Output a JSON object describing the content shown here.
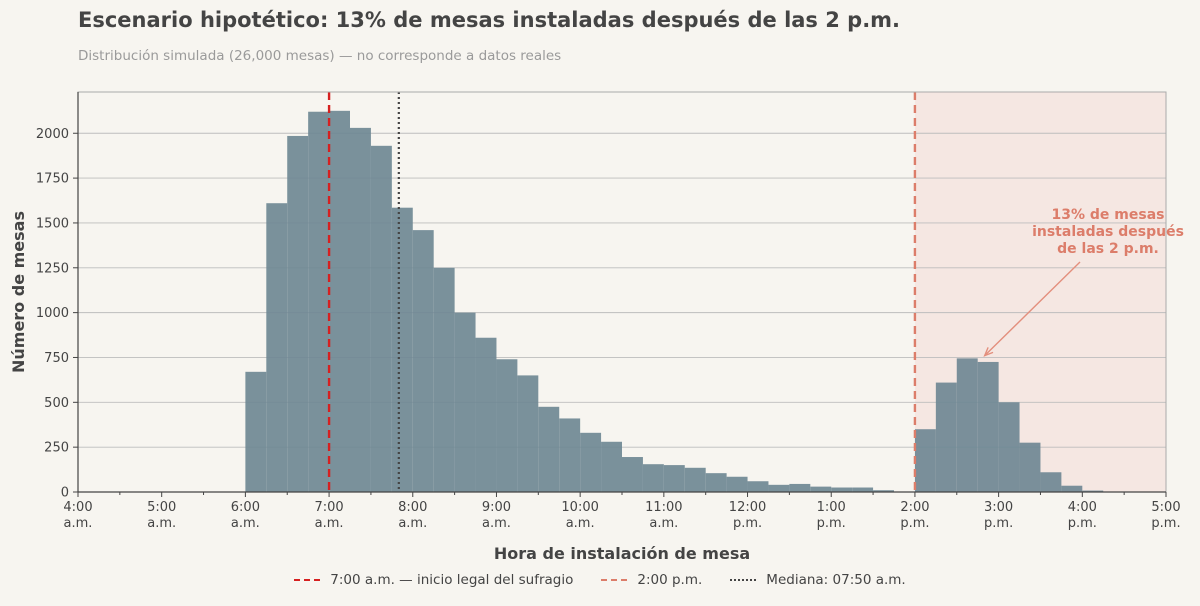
{
  "header": {
    "title": "Escenario hipotético: 13% de mesas instaladas después de las 2 p.m.",
    "subtitle": "Distribución simulada (26,000 mesas) — no corresponde a datos reales"
  },
  "legend": {
    "items": [
      {
        "label": "7:00 a.m. — inicio legal del sufragio",
        "color": "#d62020",
        "style": "dashed"
      },
      {
        "label": "2:00 p.m.",
        "color": "#dc7d6a",
        "style": "dashed"
      },
      {
        "label": "Mediana: 07:50 a.m.",
        "color": "#444444",
        "style": "dotted"
      }
    ]
  },
  "colors": {
    "background": "#f7f5f0",
    "bars": "#6f8894",
    "highlight_region": "#f5e7e2",
    "annotation": "#dc7d6a",
    "line_7am": "#d62020",
    "line_2pm": "#dc7d6a",
    "median": "#444444"
  },
  "chart_data": {
    "type": "bar",
    "title": "Escenario hipotético: 13% de mesas instaladas después de las 2 p.m.",
    "subtitle": "Distribución simulada (26,000 mesas) — no corresponde a datos reales",
    "xlabel": "Hora de instalación de mesa",
    "ylabel": "Número de mesas",
    "xlim": [
      "04:00",
      "17:00"
    ],
    "ylim": [
      0,
      2230
    ],
    "bin_width_minutes": 15,
    "bins": [
      {
        "start": "06:00",
        "value": 670
      },
      {
        "start": "06:15",
        "value": 1610
      },
      {
        "start": "06:30",
        "value": 1985
      },
      {
        "start": "06:45",
        "value": 2120
      },
      {
        "start": "07:00",
        "value": 2125
      },
      {
        "start": "07:15",
        "value": 2030
      },
      {
        "start": "07:30",
        "value": 1930
      },
      {
        "start": "07:45",
        "value": 1585
      },
      {
        "start": "08:00",
        "value": 1460
      },
      {
        "start": "08:15",
        "value": 1250
      },
      {
        "start": "08:30",
        "value": 1000
      },
      {
        "start": "08:45",
        "value": 860
      },
      {
        "start": "09:00",
        "value": 740
      },
      {
        "start": "09:15",
        "value": 650
      },
      {
        "start": "09:30",
        "value": 475
      },
      {
        "start": "09:45",
        "value": 410
      },
      {
        "start": "10:00",
        "value": 330
      },
      {
        "start": "10:15",
        "value": 280
      },
      {
        "start": "10:30",
        "value": 195
      },
      {
        "start": "10:45",
        "value": 155
      },
      {
        "start": "11:00",
        "value": 150
      },
      {
        "start": "11:15",
        "value": 135
      },
      {
        "start": "11:30",
        "value": 105
      },
      {
        "start": "11:45",
        "value": 85
      },
      {
        "start": "12:00",
        "value": 60
      },
      {
        "start": "12:15",
        "value": 40
      },
      {
        "start": "12:30",
        "value": 45
      },
      {
        "start": "12:45",
        "value": 30
      },
      {
        "start": "13:00",
        "value": 25
      },
      {
        "start": "13:15",
        "value": 25
      },
      {
        "start": "13:30",
        "value": 10
      },
      {
        "start": "14:00",
        "value": 350
      },
      {
        "start": "14:15",
        "value": 610
      },
      {
        "start": "14:30",
        "value": 745
      },
      {
        "start": "14:45",
        "value": 725
      },
      {
        "start": "15:00",
        "value": 500
      },
      {
        "start": "15:15",
        "value": 275
      },
      {
        "start": "15:30",
        "value": 110
      },
      {
        "start": "15:45",
        "value": 35
      },
      {
        "start": "16:00",
        "value": 8
      }
    ],
    "y_ticks": [
      0,
      250,
      500,
      750,
      1000,
      1250,
      1500,
      1750,
      2000
    ],
    "x_ticks": [
      {
        "time": "04:00",
        "line1": "4:00",
        "line2": "a.m."
      },
      {
        "time": "05:00",
        "line1": "5:00",
        "line2": "a.m."
      },
      {
        "time": "06:00",
        "line1": "6:00",
        "line2": "a.m."
      },
      {
        "time": "07:00",
        "line1": "7:00",
        "line2": "a.m."
      },
      {
        "time": "08:00",
        "line1": "8:00",
        "line2": "a.m."
      },
      {
        "time": "09:00",
        "line1": "9:00",
        "line2": "a.m."
      },
      {
        "time": "10:00",
        "line1": "10:00",
        "line2": "a.m."
      },
      {
        "time": "11:00",
        "line1": "11:00",
        "line2": "a.m."
      },
      {
        "time": "12:00",
        "line1": "12:00",
        "line2": "p.m."
      },
      {
        "time": "13:00",
        "line1": "1:00",
        "line2": "p.m."
      },
      {
        "time": "14:00",
        "line1": "2:00",
        "line2": "p.m."
      },
      {
        "time": "15:00",
        "line1": "3:00",
        "line2": "p.m."
      },
      {
        "time": "16:00",
        "line1": "4:00",
        "line2": "p.m."
      },
      {
        "time": "17:00",
        "line1": "5:00",
        "line2": "p.m."
      }
    ],
    "reference_lines": [
      {
        "time": "07:00",
        "label": "7:00 a.m. — inicio legal del sufragio",
        "style": "dashed",
        "color": "#d62020"
      },
      {
        "time": "14:00",
        "label": "2:00 p.m.",
        "style": "dashed",
        "color": "#dc7d6a"
      },
      {
        "time": "07:50",
        "label": "Mediana: 07:50 a.m.",
        "style": "dotted",
        "color": "#444444"
      }
    ],
    "highlight_region": {
      "from": "14:00",
      "to": "17:00"
    },
    "annotation": {
      "lines": [
        "13% de mesas",
        "instaladas después",
        "de las 2 p.m."
      ],
      "arrow_to": {
        "time": "14:50",
        "value": 760
      }
    },
    "grid": "horizontal",
    "legend_position": "bottom"
  }
}
